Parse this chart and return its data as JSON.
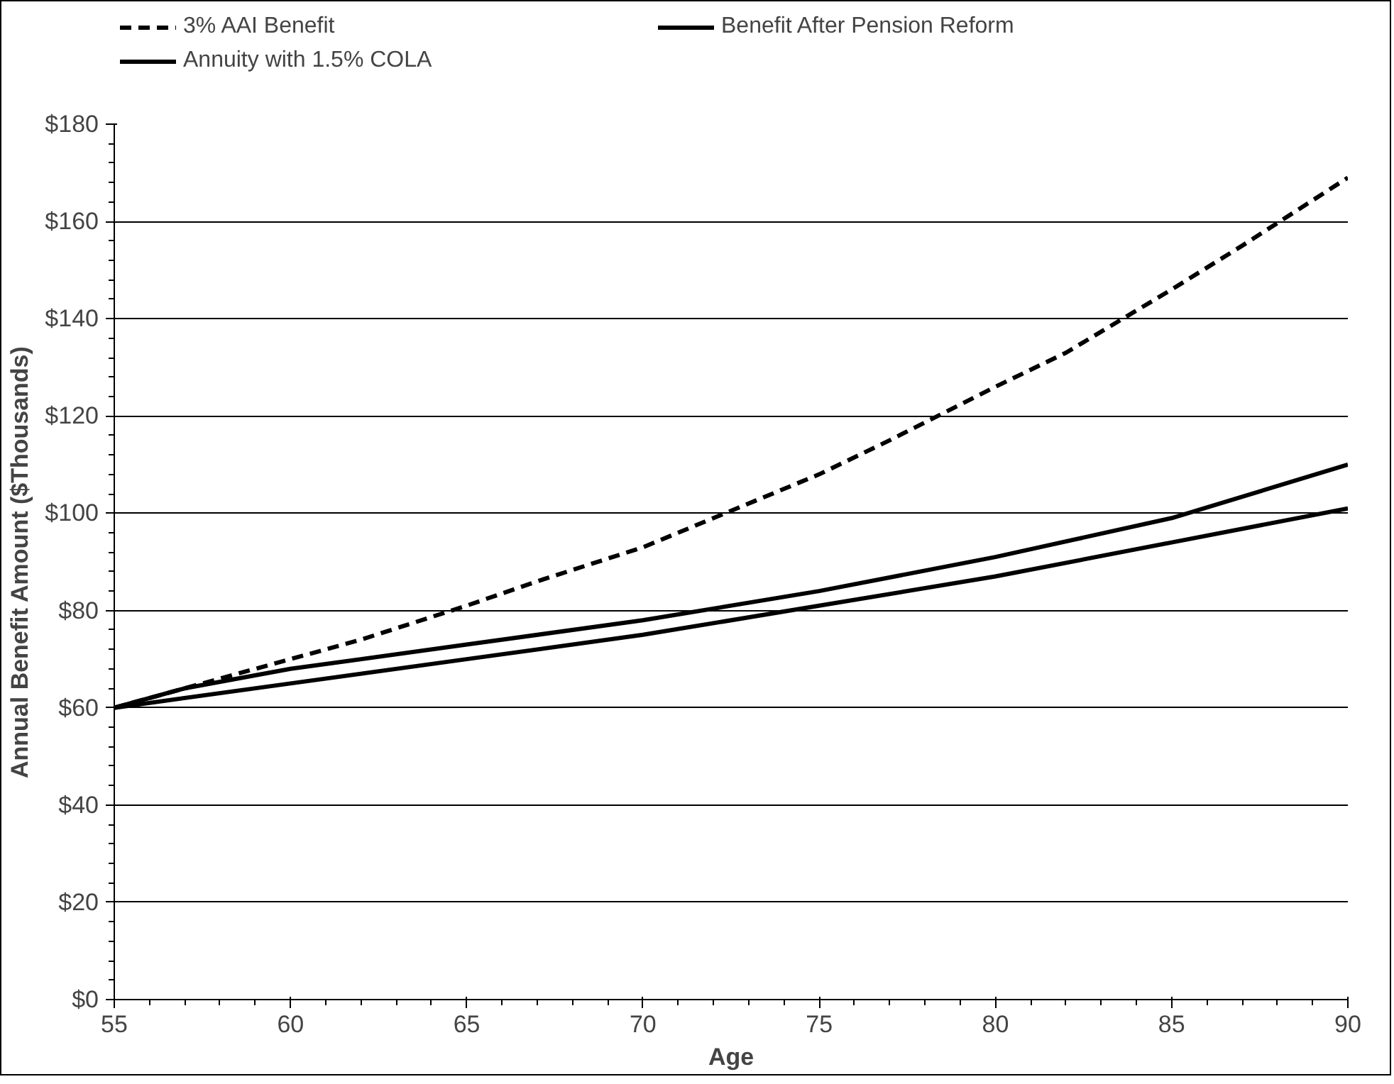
{
  "chart_data": {
    "type": "line",
    "xlabel": "Age",
    "ylabel": "Annual Benefit Amount ($Thousands)",
    "xlim": [
      55,
      90
    ],
    "xticks": [
      55,
      60,
      65,
      70,
      75,
      80,
      85,
      90
    ],
    "ylim": [
      0,
      180
    ],
    "yticks": [
      {
        "value": 0,
        "label": "$0"
      },
      {
        "value": 20,
        "label": "$20"
      },
      {
        "value": 40,
        "label": "$40"
      },
      {
        "value": 60,
        "label": "$60"
      },
      {
        "value": 80,
        "label": "$80"
      },
      {
        "value": 100,
        "label": "$100"
      },
      {
        "value": 120,
        "label": "$120"
      },
      {
        "value": 140,
        "label": "$140"
      },
      {
        "value": 160,
        "label": "$160"
      },
      {
        "value": 180,
        "label": "$180"
      }
    ],
    "grid": "y",
    "legend": "top",
    "marker": "none",
    "series": [
      {
        "name": "3% AAI Benefit",
        "color": "#000000",
        "line_style": "dashed",
        "x": [
          55,
          57,
          60,
          62,
          65,
          67,
          70,
          72,
          75,
          77,
          80,
          82,
          85,
          87,
          90
        ],
        "values": [
          60,
          64,
          70,
          74,
          81,
          86,
          93,
          99,
          108,
          115,
          126,
          133,
          146,
          155,
          169
        ]
      },
      {
        "name": "Benefit After Pension Reform",
        "color": "#000000",
        "line_style": "solid",
        "x": [
          55,
          57,
          60,
          65,
          70,
          75,
          80,
          85,
          90
        ],
        "values": [
          60,
          64,
          68,
          73,
          78,
          84,
          91,
          99,
          110
        ]
      },
      {
        "name": "Annuity with 1.5% COLA",
        "color": "#000000",
        "line_style": "solid",
        "x": [
          55,
          60,
          65,
          70,
          75,
          80,
          85,
          90
        ],
        "values": [
          60,
          65,
          70,
          75,
          81,
          87,
          94,
          101
        ]
      }
    ]
  }
}
